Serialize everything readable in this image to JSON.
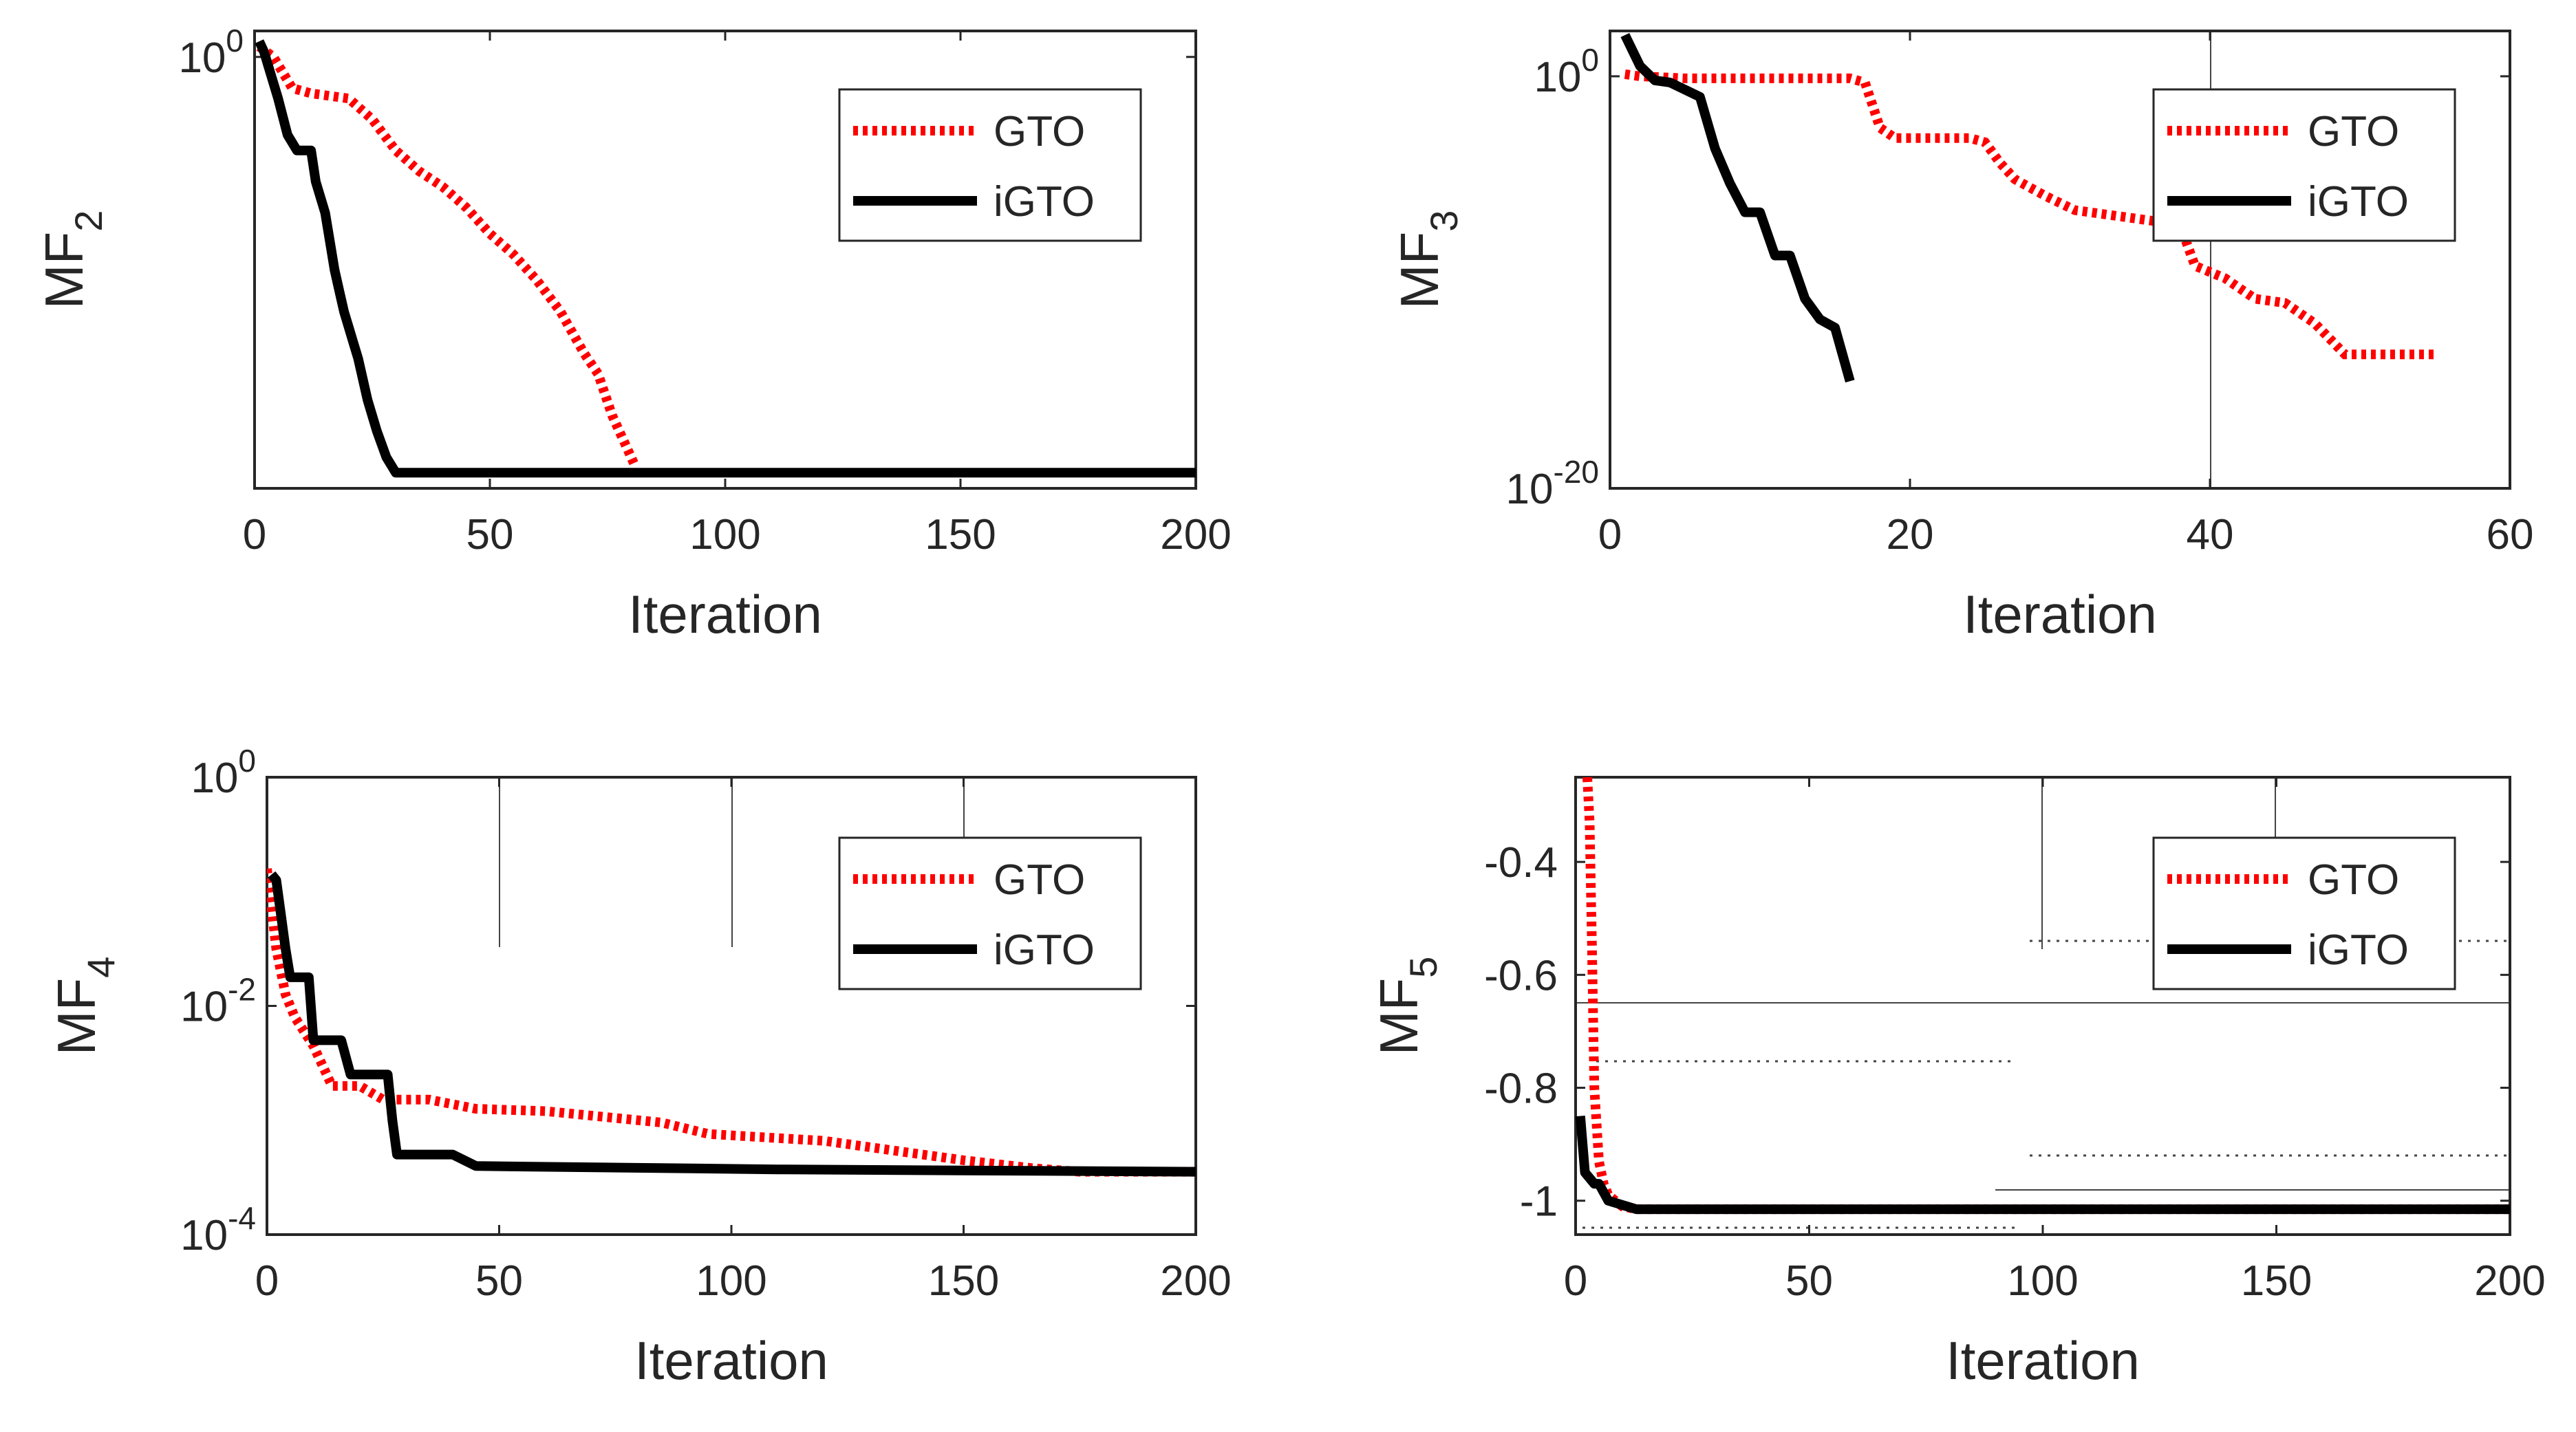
{
  "chart_data": [
    {
      "id": "mf2",
      "type": "line",
      "ylabel_main": "MF",
      "ylabel_sub": "2",
      "xlabel": "Iteration",
      "xlim": [
        0,
        200
      ],
      "xticks": [
        0,
        50,
        100,
        150,
        200
      ],
      "xtick_labels": [
        "0",
        "50",
        "100",
        "150",
        "200"
      ],
      "yscale": "log",
      "ylim_log10": [
        -4.15,
        0.25
      ],
      "yticks_log10": [
        0
      ],
      "ytick_labels": [
        {
          "base": "10",
          "exp": "0"
        }
      ],
      "legend": {
        "position": "top-right",
        "entries": [
          "GTO",
          "iGTO"
        ]
      },
      "series": [
        {
          "name": "GTO",
          "color": "#ff0000",
          "style": "dotted",
          "x": [
            1,
            4,
            8,
            12,
            20,
            25,
            30,
            35,
            40,
            45,
            50,
            55,
            60,
            65,
            70,
            73,
            76,
            79,
            81
          ],
          "log10y": [
            0.1,
            0.0,
            -0.3,
            -0.35,
            -0.4,
            -0.6,
            -0.9,
            -1.1,
            -1.25,
            -1.45,
            -1.7,
            -1.9,
            -2.15,
            -2.45,
            -2.85,
            -3.05,
            -3.45,
            -3.75,
            -3.95
          ]
        },
        {
          "name": "iGTO",
          "color": "#000000",
          "style": "solid",
          "x": [
            1,
            2,
            3,
            5,
            7,
            9,
            12,
            13,
            15,
            17,
            18,
            19,
            20,
            21,
            22,
            24,
            26,
            28,
            30,
            200
          ],
          "log10y": [
            0.15,
            0.05,
            -0.1,
            -0.4,
            -0.75,
            -0.9,
            -0.9,
            -1.2,
            -1.5,
            -2.05,
            -2.25,
            -2.45,
            -2.6,
            -2.75,
            -2.9,
            -3.3,
            -3.6,
            -3.85,
            -4.0,
            -4.0
          ]
        }
      ]
    },
    {
      "id": "mf3",
      "type": "line",
      "ylabel_main": "MF",
      "ylabel_sub": "3",
      "xlabel": "Iteration",
      "xlim": [
        0,
        60
      ],
      "xticks": [
        0,
        20,
        40,
        60
      ],
      "xtick_labels": [
        "0",
        "20",
        "40",
        "60"
      ],
      "yscale": "log",
      "ylim_log10": [
        -20,
        2.2
      ],
      "yticks_log10": [
        0,
        -20
      ],
      "ytick_labels": [
        {
          "base": "10",
          "exp": "0"
        },
        {
          "base": "10",
          "exp": "-20"
        }
      ],
      "legend": {
        "position": "top-right",
        "entries": [
          "GTO",
          "iGTO"
        ]
      },
      "series": [
        {
          "name": "GTO",
          "color": "#ff0000",
          "style": "dotted",
          "x": [
            1,
            2,
            5,
            10,
            16,
            17,
            18,
            19,
            24,
            25,
            26,
            27,
            29,
            31,
            36,
            38,
            39,
            40,
            41,
            43,
            45,
            47,
            49,
            55
          ],
          "log10y": [
            0.1,
            0.0,
            -0.1,
            -0.1,
            -0.1,
            -0.3,
            -2.5,
            -3.0,
            -3.0,
            -3.2,
            -4.2,
            -5.0,
            -5.8,
            -6.5,
            -7.0,
            -7.2,
            -9.2,
            -9.5,
            -9.8,
            -10.8,
            -11.0,
            -12.0,
            -13.5,
            -13.5
          ]
        },
        {
          "name": "iGTO",
          "color": "#000000",
          "style": "solid",
          "x": [
            1,
            2,
            3,
            4,
            6,
            7,
            8,
            9,
            10,
            11,
            12,
            13,
            14,
            15,
            16
          ],
          "log10y": [
            2.0,
            0.5,
            -0.2,
            -0.3,
            -1.0,
            -3.5,
            -5.2,
            -6.6,
            -6.6,
            -8.7,
            -8.7,
            -10.8,
            -11.8,
            -12.2,
            -14.8
          ]
        }
      ]
    },
    {
      "id": "mf4",
      "type": "line",
      "ylabel_main": "MF",
      "ylabel_sub": "4",
      "xlabel": "Iteration",
      "xlim": [
        0,
        200
      ],
      "xticks": [
        0,
        50,
        100,
        150,
        200
      ],
      "xtick_labels": [
        "0",
        "50",
        "100",
        "150",
        "200"
      ],
      "yscale": "log",
      "ylim_log10": [
        -4,
        0
      ],
      "yticks_log10": [
        0,
        -2,
        -4
      ],
      "ytick_labels": [
        {
          "base": "10",
          "exp": "0"
        },
        {
          "base": "10",
          "exp": "-2"
        },
        {
          "base": "10",
          "exp": "-4"
        }
      ],
      "legend": {
        "position": "top-right",
        "entries": [
          "GTO",
          "iGTO"
        ]
      },
      "series": [
        {
          "name": "GTO",
          "color": "#ff0000",
          "style": "dotted",
          "x": [
            0,
            2,
            4,
            6,
            10,
            14,
            20,
            25,
            35,
            45,
            60,
            85,
            95,
            120,
            150,
            165,
            175,
            200
          ],
          "log10y": [
            -0.8,
            -1.5,
            -1.9,
            -2.1,
            -2.35,
            -2.7,
            -2.7,
            -2.82,
            -2.82,
            -2.9,
            -2.92,
            -3.02,
            -3.12,
            -3.18,
            -3.35,
            -3.42,
            -3.45,
            -3.45
          ]
        },
        {
          "name": "iGTO",
          "color": "#000000",
          "style": "solid",
          "x": [
            1,
            2,
            3,
            4,
            5,
            6,
            9,
            10,
            11,
            16,
            18,
            26,
            27,
            28,
            40,
            45,
            110,
            200
          ],
          "log10y": [
            -0.85,
            -0.9,
            -1.2,
            -1.5,
            -1.75,
            -1.75,
            -1.75,
            -2.3,
            -2.3,
            -2.3,
            -2.6,
            -2.6,
            -3.0,
            -3.3,
            -3.3,
            -3.4,
            -3.43,
            -3.45
          ]
        }
      ]
    },
    {
      "id": "mf5",
      "type": "line",
      "ylabel_main": "MF",
      "ylabel_sub": "5",
      "xlabel": "Iteration",
      "xlim": [
        0,
        200
      ],
      "xticks": [
        0,
        50,
        100,
        150,
        200
      ],
      "xtick_labels": [
        "0",
        "50",
        "100",
        "150",
        "200"
      ],
      "yscale": "linear",
      "ylim": [
        -1.06,
        -0.25
      ],
      "yticks": [
        -0.4,
        -0.6,
        -0.8,
        -1
      ],
      "ytick_labels": [
        "-0.4",
        "-0.6",
        "-0.8",
        "-1"
      ],
      "legend": {
        "position": "top-right",
        "entries": [
          "GTO",
          "iGTO"
        ]
      },
      "series": [
        {
          "name": "GTO",
          "color": "#ff0000",
          "style": "dotted",
          "x": [
            2.5,
            3,
            3.5,
            4,
            5,
            6,
            7,
            10,
            13,
            200
          ],
          "log10y": null,
          "y": [
            -0.25,
            -0.33,
            -0.55,
            -0.8,
            -0.93,
            -0.97,
            -0.99,
            -1.01,
            -1.015,
            -1.015
          ]
        },
        {
          "name": "iGTO",
          "color": "#000000",
          "style": "solid",
          "x": [
            1,
            2,
            3,
            4,
            5,
            7,
            9,
            11,
            13,
            200
          ],
          "y": [
            -0.85,
            -0.95,
            -0.96,
            -0.97,
            -0.97,
            -1.0,
            -1.005,
            -1.01,
            -1.015,
            -1.015
          ]
        }
      ]
    }
  ]
}
